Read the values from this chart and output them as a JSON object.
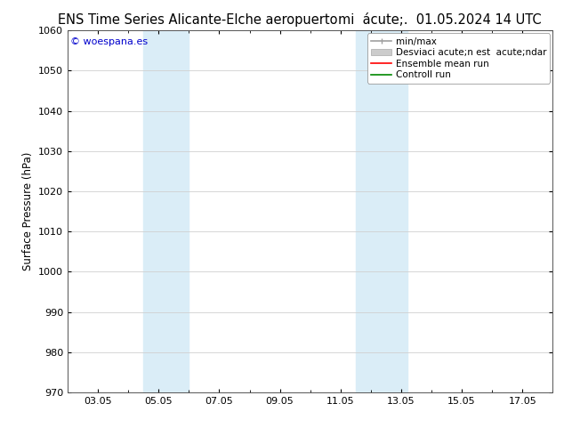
{
  "title_left": "ENS Time Series Alicante-Elche aeropuerto",
  "title_right": "mi  acute;.  01.05.2024 14 UTC",
  "ylabel": "Surface Pressure (hPa)",
  "ylim": [
    970,
    1060
  ],
  "yticks": [
    970,
    980,
    990,
    1000,
    1010,
    1020,
    1030,
    1040,
    1050,
    1060
  ],
  "xtick_labels": [
    "03.05",
    "05.05",
    "07.05",
    "09.05",
    "11.05",
    "13.05",
    "15.05",
    "17.05"
  ],
  "xtick_positions": [
    3,
    5,
    7,
    9,
    11,
    13,
    15,
    17
  ],
  "xlim": [
    2,
    18
  ],
  "shaded_bands": [
    {
      "xmin": 4.5,
      "xmax": 6.0,
      "color": "#daedf7"
    },
    {
      "xmin": 11.5,
      "xmax": 13.2,
      "color": "#daedf7"
    }
  ],
  "watermark": "© woespana.es",
  "watermark_color": "#0000cc",
  "legend_entries": [
    {
      "label": "min/max",
      "color": "#a0a0a0",
      "lw": 1.2
    },
    {
      "label": "Desviaci acute;n est  acute;ndar",
      "color": "#cccccc",
      "lw": 6
    },
    {
      "label": "Ensemble mean run",
      "color": "#ff0000",
      "lw": 1.2
    },
    {
      "label": "Controll run",
      "color": "#008800",
      "lw": 1.2
    }
  ],
  "background_color": "#ffffff",
  "plot_bg_color": "#ffffff",
  "grid_color": "#d0d0d0",
  "title_fontsize": 10.5,
  "ylabel_fontsize": 8.5,
  "tick_fontsize": 8,
  "legend_fontsize": 7.5
}
